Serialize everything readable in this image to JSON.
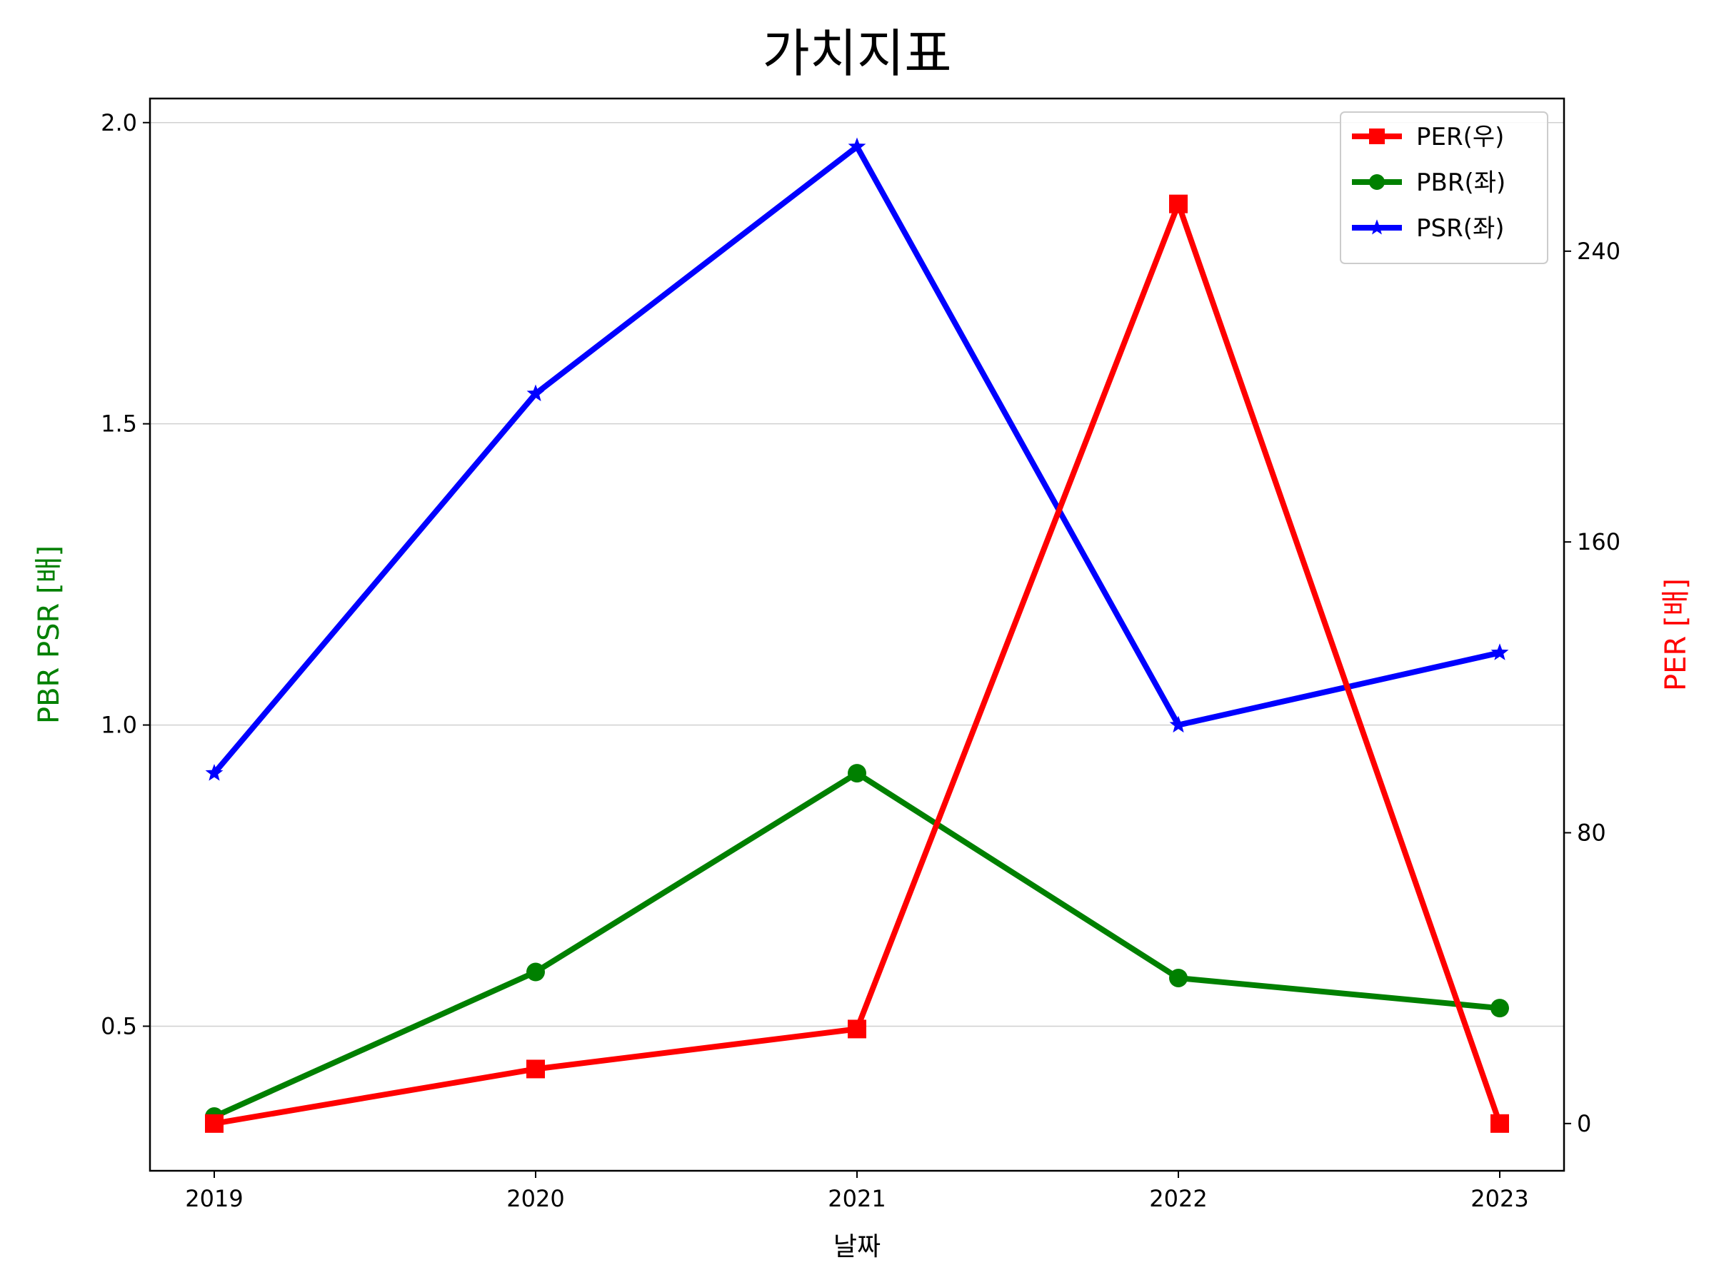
{
  "chart_data": {
    "type": "line",
    "title": "가치지표",
    "xlabel": "날짜",
    "ylabel_left": "PBR PSR [배]",
    "ylabel_right": "PER [배]",
    "ylabel_left_color": "#008000",
    "ylabel_right_color": "#ff0000",
    "categories": [
      "2019",
      "2020",
      "2021",
      "2022",
      "2023"
    ],
    "ylim_left": [
      0.26,
      2.04
    ],
    "ylim_right": [
      -13,
      282
    ],
    "yticks_left": [
      "0.5",
      "1.0",
      "1.5",
      "2.0"
    ],
    "yticks_right": [
      "0",
      "80",
      "160",
      "240"
    ],
    "grid": "horizontal (left axis)",
    "legend_position": "top-right",
    "series": [
      {
        "name": "PER(우)",
        "axis": "right",
        "color": "#ff0000",
        "marker": "square",
        "values": [
          0,
          15,
          26,
          253,
          0
        ]
      },
      {
        "name": "PBR(좌)",
        "axis": "left",
        "color": "#008000",
        "marker": "circle",
        "values": [
          0.35,
          0.59,
          0.92,
          0.58,
          0.53
        ]
      },
      {
        "name": "PSR(좌)",
        "axis": "left",
        "color": "#0000ff",
        "marker": "star",
        "values": [
          0.92,
          1.55,
          1.96,
          1.0,
          1.12
        ]
      }
    ]
  }
}
